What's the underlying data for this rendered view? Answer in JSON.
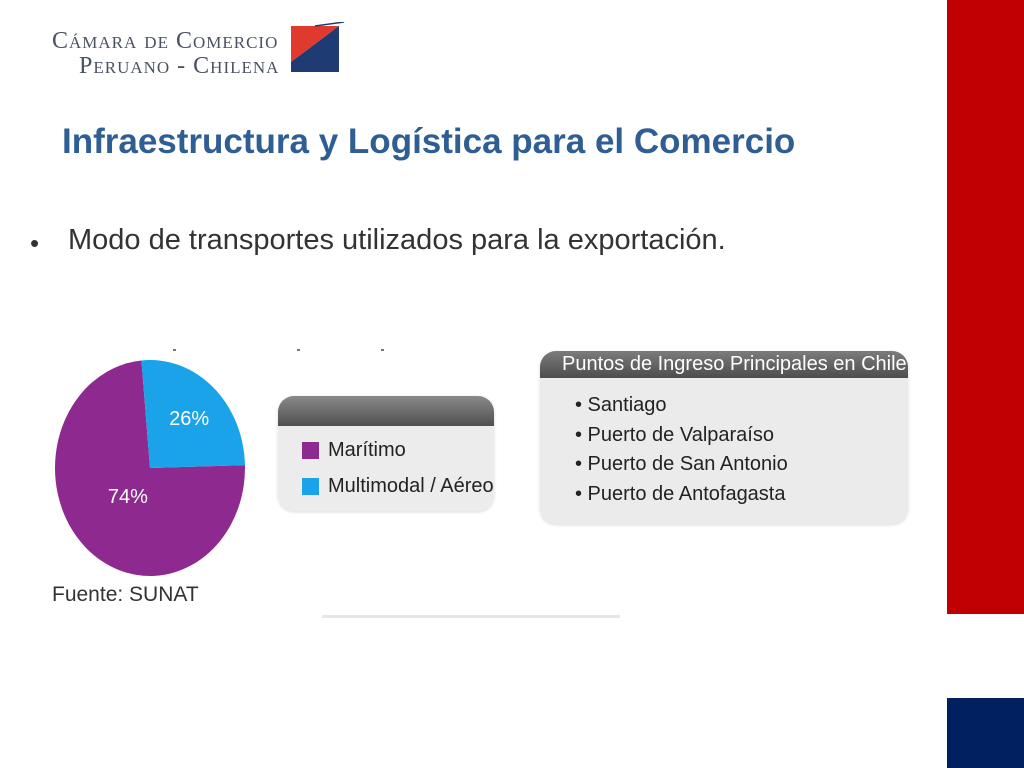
{
  "logo": {
    "line1": "Cámara de Comercio",
    "line2": "Peruano - Chilena",
    "colors": {
      "red": "#e03a2f",
      "blue": "#1f3b73",
      "gray": "#4a5261"
    }
  },
  "title": "Infraestructura y  Logística  para el Comercio",
  "bullet": "Modo de transportes utilizados para la exportación.",
  "colors": {
    "title": "#2e5e94",
    "side_red": "#c00000",
    "side_blue": "#002060"
  },
  "chart_data": {
    "type": "pie",
    "slices": [
      {
        "label": "Marítimo",
        "value": 74,
        "value_label": "74%",
        "color": "#8e2a8f"
      },
      {
        "label": "Multimodal / Aéreo",
        "value": 26,
        "value_label": "26%",
        "color": "#1aa3e8"
      }
    ],
    "legend": [
      "Marítimo",
      "Multimodal / Aéreo"
    ],
    "legend_position": "right"
  },
  "source": "Fuente: SUNAT",
  "ports": {
    "title": "Puntos de Ingreso Principales en Chile",
    "items": [
      "• Santiago",
      "• Puerto de Valparaíso",
      "• Puerto de San Antonio",
      "• Puerto de Antofagasta"
    ]
  }
}
